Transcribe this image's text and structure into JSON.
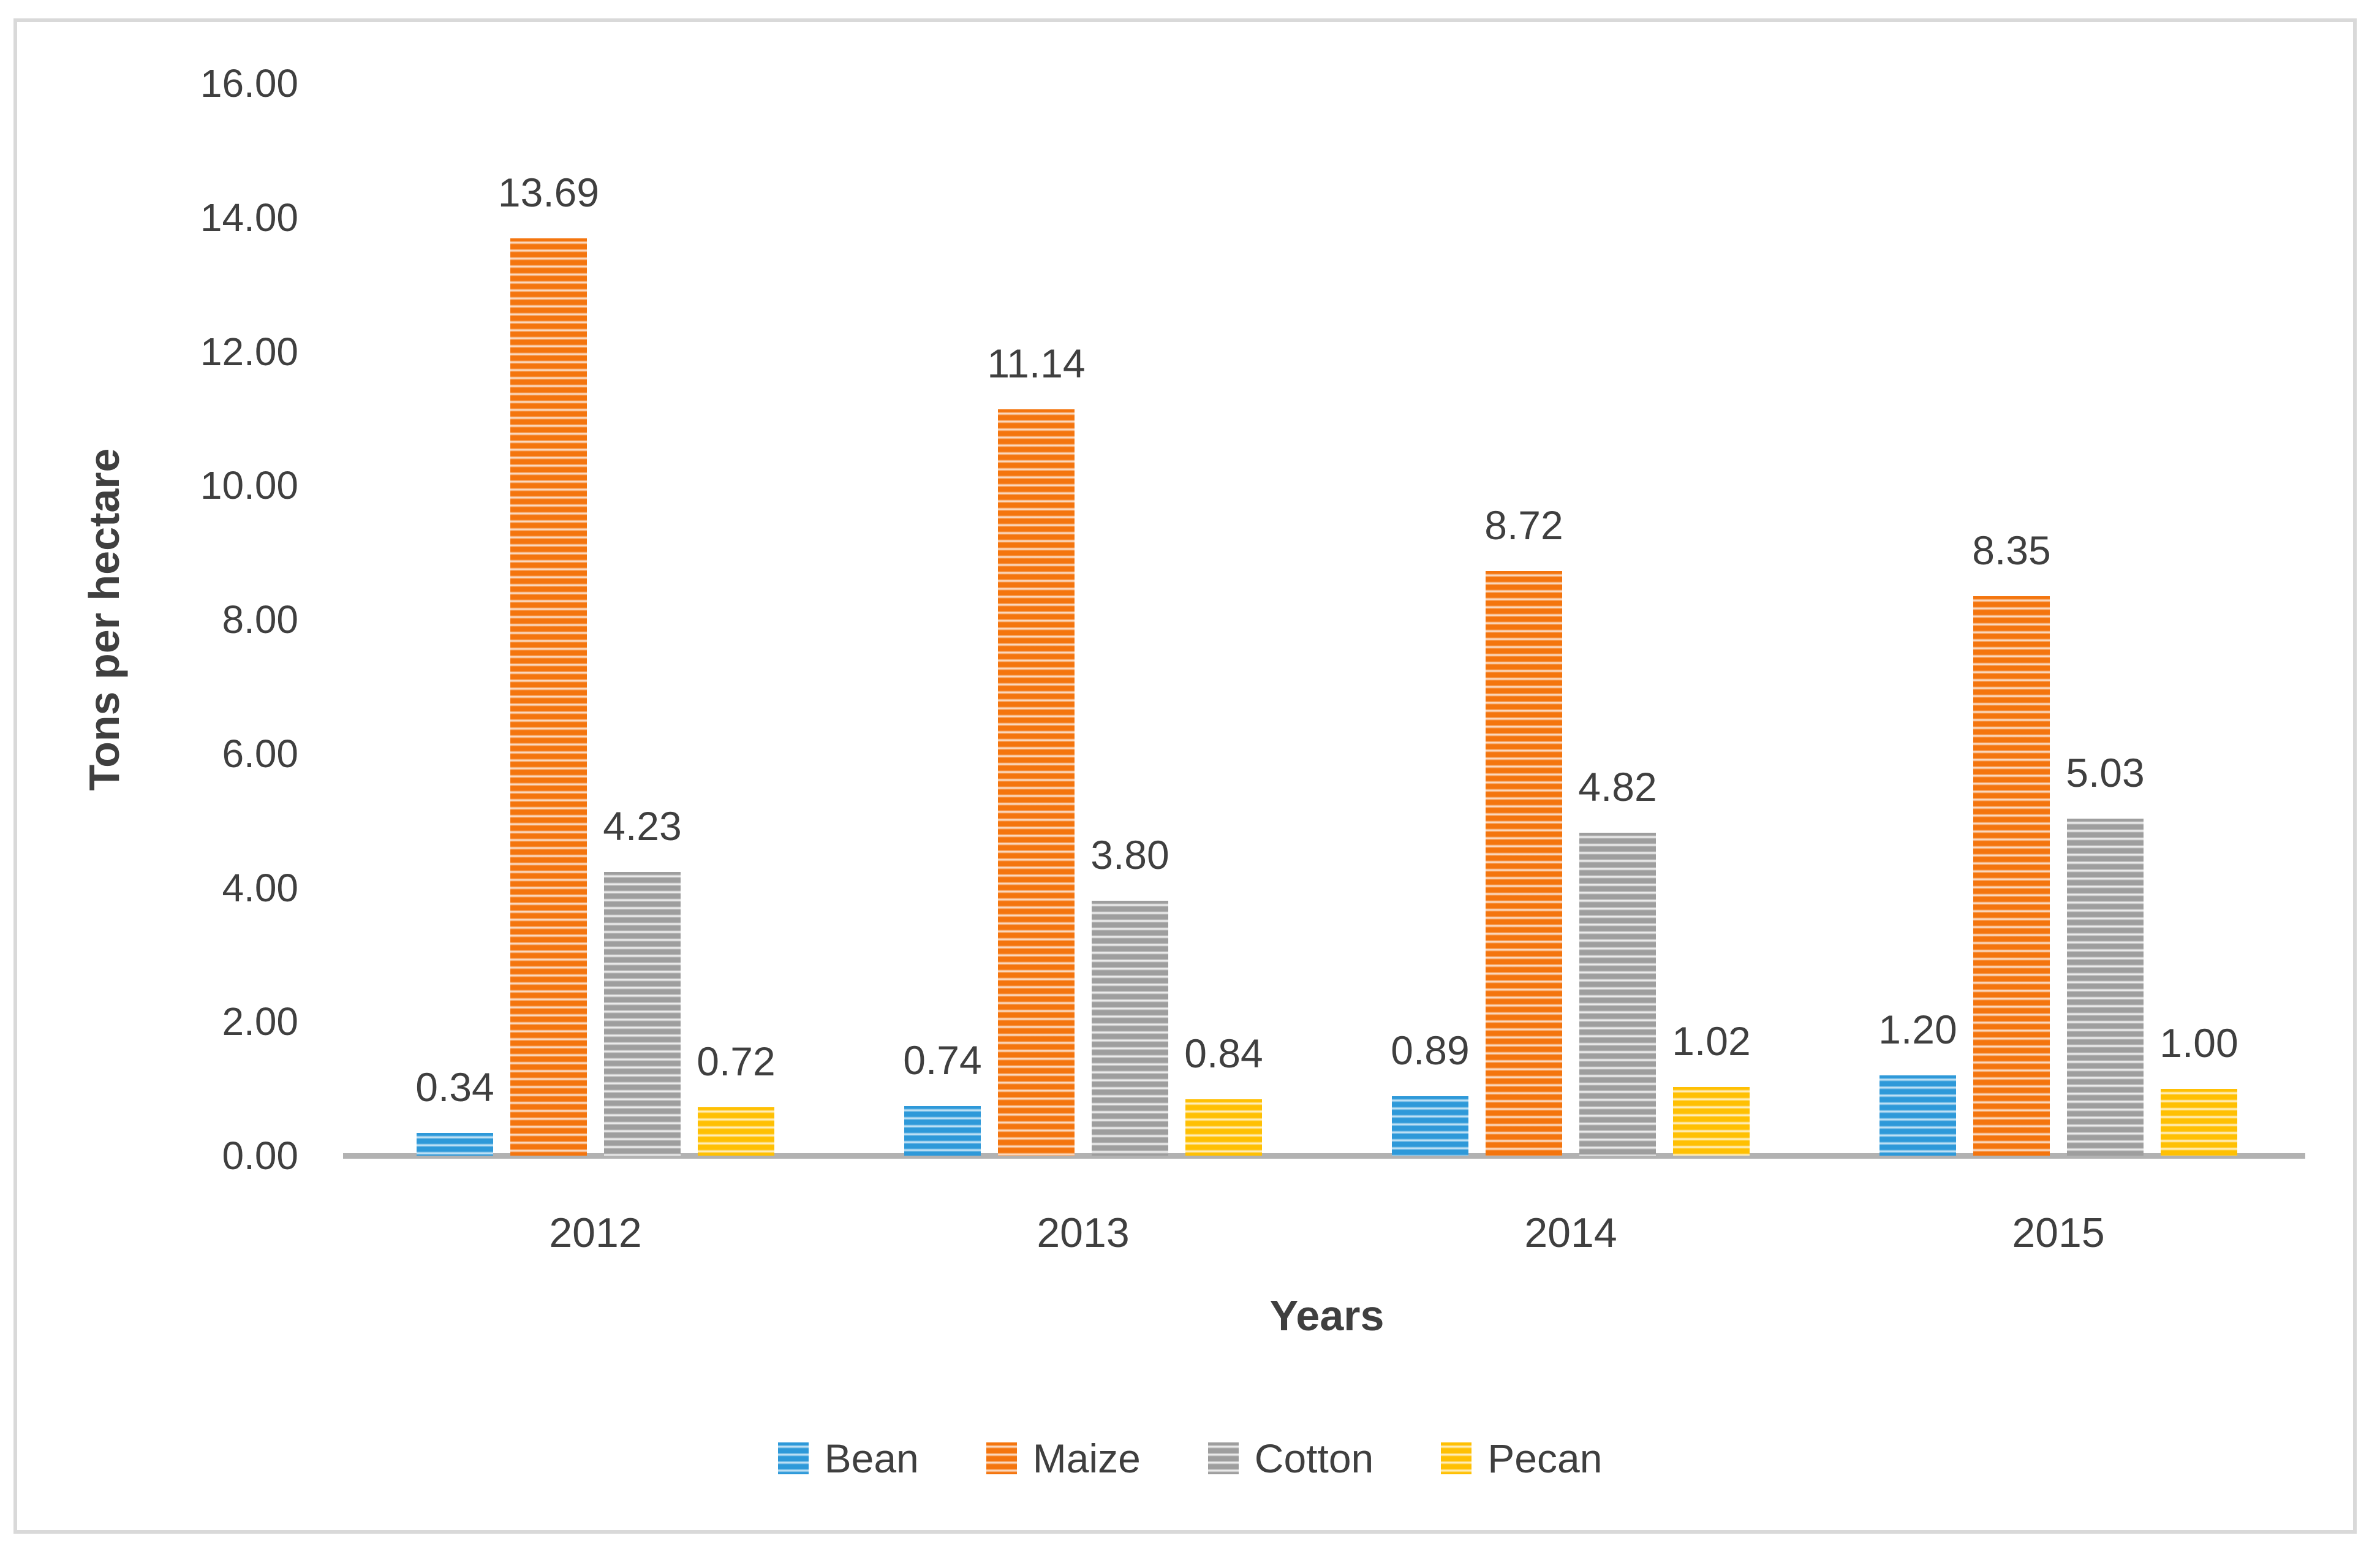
{
  "figure": {
    "background_color": "#ffffff",
    "border_color": "#d9d9d9",
    "text_color": "#3f3f3f",
    "axis_line_color": "#b2b2b2"
  },
  "chart_data": {
    "type": "bar",
    "title": "",
    "xlabel": "Years",
    "ylabel": "Tons per hectare",
    "categories": [
      "2012",
      "2013",
      "2014",
      "2015"
    ],
    "series": [
      {
        "name": "Bean",
        "color": "#2e99d9",
        "color_light": "#c3e3f6",
        "values": [
          0.34,
          0.74,
          0.89,
          1.2
        ],
        "labels": [
          "0.34",
          "0.74",
          "0.89",
          "1.20"
        ]
      },
      {
        "name": "Maize",
        "color": "#f4750e",
        "color_light": "#fbdcc5",
        "values": [
          13.69,
          11.14,
          8.72,
          8.35
        ],
        "labels": [
          "13.69",
          "11.14",
          "8.72",
          "8.35"
        ]
      },
      {
        "name": "Cotton",
        "color": "#9e9e9e",
        "color_light": "#eeeeee",
        "values": [
          4.23,
          3.8,
          4.82,
          5.03
        ],
        "labels": [
          "4.23",
          "3.80",
          "4.82",
          "5.03"
        ]
      },
      {
        "name": "Pecan",
        "color": "#ffc003",
        "color_light": "#ffefc0",
        "values": [
          0.72,
          0.84,
          1.02,
          1.0
        ],
        "labels": [
          "0.72",
          "0.84",
          "1.02",
          "1.00"
        ]
      }
    ],
    "ylim": [
      0,
      16
    ],
    "yticks": [
      "0.00",
      "2.00",
      "4.00",
      "6.00",
      "8.00",
      "10.00",
      "12.00",
      "14.00",
      "16.00"
    ],
    "grid": false,
    "legend_position": "bottom",
    "pattern": "horizontal-stripes"
  }
}
